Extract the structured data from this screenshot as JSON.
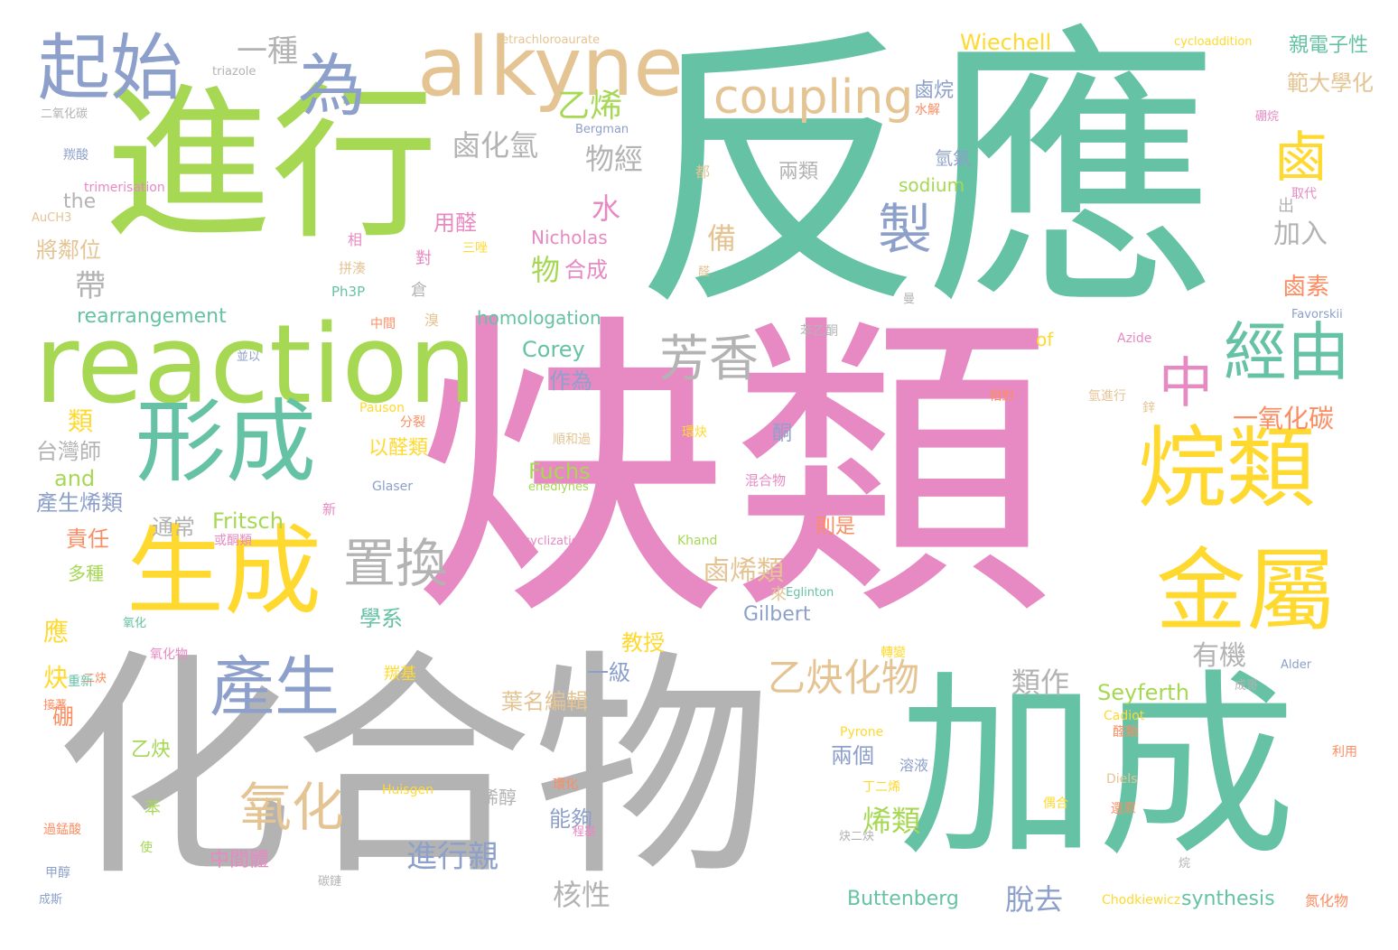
{
  "palette": {
    "teal": "#66c2a5",
    "pink": "#e78ac3",
    "grey": "#b3b3b3",
    "lime": "#a6d854",
    "yellow": "#ffd92f",
    "tan": "#e5c494",
    "blue": "#8da0cb",
    "orange": "#fc8d62"
  },
  "words": [
    {
      "text": "反應",
      "color": "teal"
    },
    {
      "text": "炔類",
      "color": "pink"
    },
    {
      "text": "化合物",
      "color": "grey"
    },
    {
      "text": "進行",
      "color": "lime"
    },
    {
      "text": "加成",
      "color": "teal"
    },
    {
      "text": "reaction",
      "color": "lime"
    },
    {
      "text": "alkyne",
      "color": "tan"
    },
    {
      "text": "烷類",
      "color": "yellow"
    },
    {
      "text": "金屬",
      "color": "yellow"
    },
    {
      "text": "生成",
      "color": "yellow"
    },
    {
      "text": "形成",
      "color": "teal"
    },
    {
      "text": "起始",
      "color": "blue"
    },
    {
      "text": "為",
      "color": "blue"
    },
    {
      "text": "coupling",
      "color": "tan"
    },
    {
      "text": "產生",
      "color": "blue"
    },
    {
      "text": "經由",
      "color": "teal"
    },
    {
      "text": "芳香",
      "color": "grey"
    },
    {
      "text": "置換",
      "color": "grey"
    },
    {
      "text": "氧化",
      "color": "tan"
    },
    {
      "text": "製",
      "color": "blue"
    },
    {
      "text": "鹵",
      "color": "yellow"
    },
    {
      "text": "中",
      "color": "pink"
    },
    {
      "text": "乙炔化物",
      "color": "tan"
    },
    {
      "text": "一種",
      "color": "grey"
    },
    {
      "text": "乙烯",
      "color": "lime"
    },
    {
      "text": "鹵化氫",
      "color": "grey"
    },
    {
      "text": "物經",
      "color": "grey"
    },
    {
      "text": "水",
      "color": "pink"
    },
    {
      "text": "備",
      "color": "tan"
    },
    {
      "text": "物",
      "color": "lime"
    },
    {
      "text": "合成",
      "color": "pink"
    },
    {
      "text": "加入",
      "color": "grey"
    },
    {
      "text": "鹵素",
      "color": "orange"
    },
    {
      "text": "一氧化碳",
      "color": "orange"
    },
    {
      "text": "親電子性",
      "color": "teal"
    },
    {
      "text": "範大學化",
      "color": "tan"
    },
    {
      "text": "Wiechell",
      "color": "yellow"
    },
    {
      "text": "鹵烷",
      "color": "blue"
    },
    {
      "text": "帶",
      "color": "grey"
    },
    {
      "text": "將鄰位",
      "color": "tan"
    },
    {
      "text": "rearrangement",
      "color": "teal"
    },
    {
      "text": "homologation",
      "color": "teal"
    },
    {
      "text": "Nicholas",
      "color": "pink"
    },
    {
      "text": "sodium",
      "color": "lime"
    },
    {
      "text": "兩類",
      "color": "grey"
    },
    {
      "text": "氫氣",
      "color": "blue"
    },
    {
      "text": "用醛",
      "color": "pink"
    },
    {
      "text": "Corey",
      "color": "teal"
    },
    {
      "text": "作為",
      "color": "blue"
    },
    {
      "text": "of",
      "color": "yellow"
    },
    {
      "text": "類",
      "color": "yellow"
    },
    {
      "text": "台灣師",
      "color": "grey"
    },
    {
      "text": "and",
      "color": "lime"
    },
    {
      "text": "產生烯類",
      "color": "blue"
    },
    {
      "text": "Fritsch",
      "color": "lime"
    },
    {
      "text": "Fuchs",
      "color": "lime"
    },
    {
      "text": "通常",
      "color": "grey"
    },
    {
      "text": "責任",
      "color": "orange"
    },
    {
      "text": "多種",
      "color": "lime"
    },
    {
      "text": "鹵烯類",
      "color": "tan"
    },
    {
      "text": "Gilbert",
      "color": "blue"
    },
    {
      "text": "Seyferth",
      "color": "lime"
    },
    {
      "text": "有機",
      "color": "grey"
    },
    {
      "text": "類作",
      "color": "grey"
    },
    {
      "text": "教授",
      "color": "yellow"
    },
    {
      "text": "一級",
      "color": "blue"
    },
    {
      "text": "葉名編輯",
      "color": "tan"
    },
    {
      "text": "學系",
      "color": "teal"
    },
    {
      "text": "應",
      "color": "yellow"
    },
    {
      "text": "炔",
      "color": "yellow"
    },
    {
      "text": "硼",
      "color": "orange"
    },
    {
      "text": "進行親",
      "color": "blue"
    },
    {
      "text": "中間體",
      "color": "pink"
    },
    {
      "text": "核性",
      "color": "grey"
    },
    {
      "text": "脫去",
      "color": "blue"
    },
    {
      "text": "Buttenberg",
      "color": "teal"
    },
    {
      "text": "synthesis",
      "color": "teal"
    },
    {
      "text": "兩個",
      "color": "blue"
    },
    {
      "text": "烯類",
      "color": "lime"
    },
    {
      "text": "以醛類",
      "color": "yellow"
    },
    {
      "text": "乙炔",
      "color": "lime"
    },
    {
      "text": "苯",
      "color": "lime"
    },
    {
      "text": "能夠",
      "color": "blue"
    },
    {
      "text": "烯醇",
      "color": "grey"
    },
    {
      "text": "the",
      "color": "grey"
    },
    {
      "text": "tetrachloroaurate",
      "color": "tan"
    },
    {
      "text": "cycloaddition",
      "color": "yellow"
    },
    {
      "text": "triazole",
      "color": "grey"
    },
    {
      "text": "二氧化碳",
      "color": "grey"
    },
    {
      "text": "Bergman",
      "color": "blue"
    },
    {
      "text": "羰酸",
      "color": "blue"
    },
    {
      "text": "trimerisation",
      "color": "pink"
    },
    {
      "text": "AuCH3",
      "color": "tan"
    },
    {
      "text": "水解",
      "color": "orange"
    },
    {
      "text": "硼烷",
      "color": "pink"
    },
    {
      "text": "取代",
      "color": "pink"
    },
    {
      "text": "出",
      "color": "grey"
    },
    {
      "text": "都",
      "color": "tan"
    },
    {
      "text": "醛",
      "color": "tan"
    },
    {
      "text": "曼",
      "color": "grey"
    },
    {
      "text": "相",
      "color": "pink"
    },
    {
      "text": "三唑",
      "color": "yellow"
    },
    {
      "text": "對",
      "color": "pink"
    },
    {
      "text": "拼湊",
      "color": "tan"
    },
    {
      "text": "倉",
      "color": "grey"
    },
    {
      "text": "Ph3P",
      "color": "teal"
    },
    {
      "text": "溴",
      "color": "tan"
    },
    {
      "text": "中間",
      "color": "orange"
    },
    {
      "text": "苯乙酮",
      "color": "grey"
    },
    {
      "text": "並以",
      "color": "blue"
    },
    {
      "text": "Favorskii",
      "color": "blue"
    },
    {
      "text": "Azide",
      "color": "pink"
    },
    {
      "text": "相對",
      "color": "orange"
    },
    {
      "text": "氫進行",
      "color": "tan"
    },
    {
      "text": "鋅",
      "color": "tan"
    },
    {
      "text": "酮",
      "color": "blue"
    },
    {
      "text": "Pauson",
      "color": "yellow"
    },
    {
      "text": "分裂",
      "color": "orange"
    },
    {
      "text": "順和過",
      "color": "tan"
    },
    {
      "text": "環炔",
      "color": "yellow"
    },
    {
      "text": "混合物",
      "color": "pink"
    },
    {
      "text": "enediynes",
      "color": "lime"
    },
    {
      "text": "Glaser",
      "color": "blue"
    },
    {
      "text": "新",
      "color": "pink"
    },
    {
      "text": "則是",
      "color": "orange"
    },
    {
      "text": "cyclization",
      "color": "pink"
    },
    {
      "text": "Khand",
      "color": "lime"
    },
    {
      "text": "或酮類",
      "color": "pink"
    },
    {
      "text": "Eglinton",
      "color": "teal"
    },
    {
      "text": "來",
      "color": "tan"
    },
    {
      "text": "氧化物",
      "color": "pink"
    },
    {
      "text": "氧化",
      "color": "teal"
    },
    {
      "text": "重新",
      "color": "teal"
    },
    {
      "text": "二炔",
      "color": "orange"
    },
    {
      "text": "接著",
      "color": "orange"
    },
    {
      "text": "羰基",
      "color": "yellow"
    },
    {
      "text": "轉變",
      "color": "yellow"
    },
    {
      "text": "成哥",
      "color": "grey"
    },
    {
      "text": "Alder",
      "color": "blue"
    },
    {
      "text": "Cadiot",
      "color": "yellow"
    },
    {
      "text": "醛類",
      "color": "orange"
    },
    {
      "text": "Pyrone",
      "color": "yellow"
    },
    {
      "text": "利用",
      "color": "orange"
    },
    {
      "text": "Diels",
      "color": "tan"
    },
    {
      "text": "丁二烯",
      "color": "yellow"
    },
    {
      "text": "溶液",
      "color": "blue"
    },
    {
      "text": "Huisgen",
      "color": "yellow"
    },
    {
      "text": "環化",
      "color": "orange"
    },
    {
      "text": "偶合",
      "color": "yellow"
    },
    {
      "text": "還原",
      "color": "orange"
    },
    {
      "text": "炔二炔",
      "color": "grey"
    },
    {
      "text": "過錳酸",
      "color": "orange"
    },
    {
      "text": "使",
      "color": "lime"
    },
    {
      "text": "程基",
      "color": "pink"
    },
    {
      "text": "甲醇",
      "color": "blue"
    },
    {
      "text": "烷",
      "color": "grey"
    },
    {
      "text": "成斯",
      "color": "blue"
    },
    {
      "text": "碳鏈",
      "color": "grey"
    },
    {
      "text": "Chodkiewicz",
      "color": "yellow"
    },
    {
      "text": "氮化物",
      "color": "orange"
    }
  ]
}
